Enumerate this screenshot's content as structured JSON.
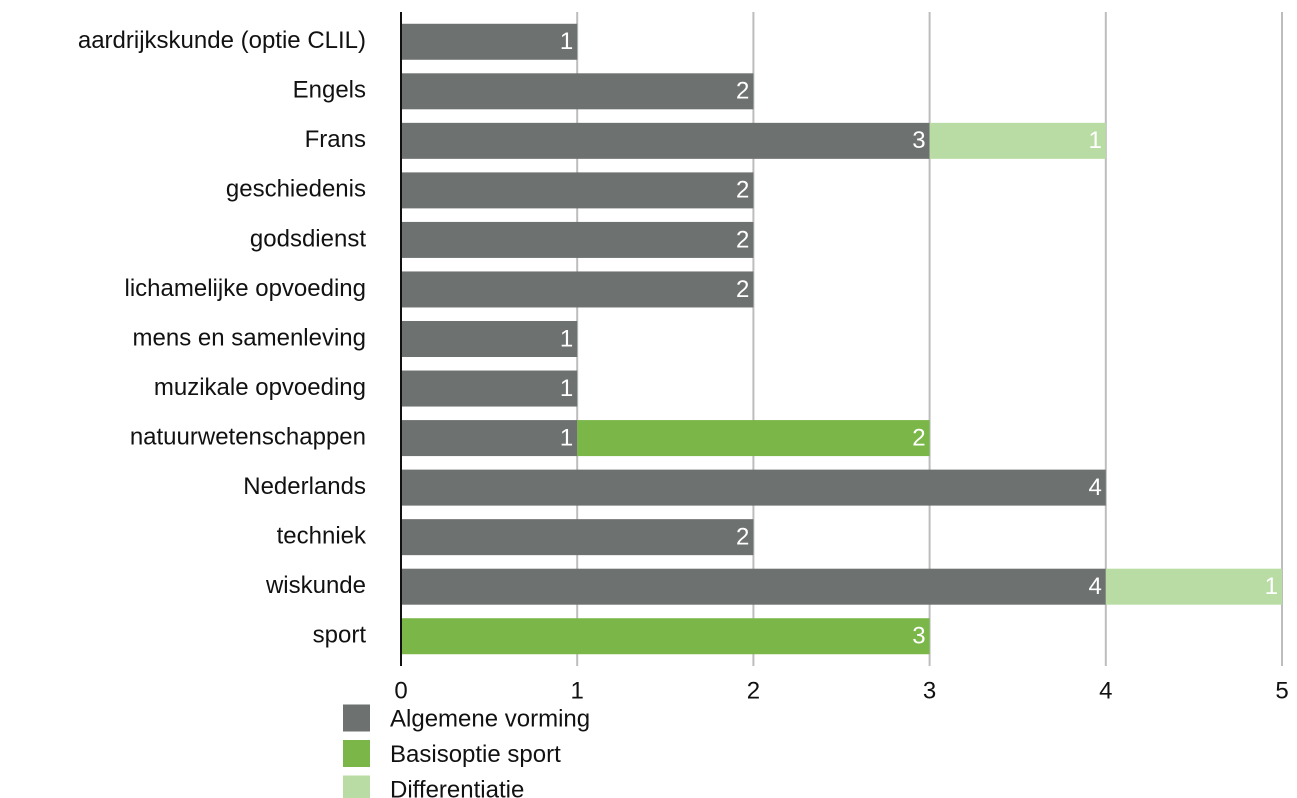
{
  "chart_data": {
    "type": "hbar-stacked",
    "categories": [
      "aardrijkskunde (optie CLIL)",
      "Engels",
      "Frans",
      "geschiedenis",
      "godsdienst",
      "lichamelijke opvoeding",
      "mens en samenleving",
      "muzikale opvoeding",
      "natuurwetenschappen",
      "Nederlands",
      "techniek",
      "wiskunde",
      "sport"
    ],
    "series": [
      {
        "name": "Algemene vorming",
        "color": "#6d716f",
        "values": [
          1,
          2,
          3,
          2,
          2,
          2,
          1,
          1,
          1,
          4,
          2,
          4,
          null
        ]
      },
      {
        "name": "Basisoptie sport",
        "color": "#7ab648",
        "values": [
          null,
          null,
          null,
          null,
          null,
          null,
          null,
          null,
          2,
          null,
          null,
          null,
          3
        ]
      },
      {
        "name": "Differentiatie",
        "color": "#b9dca5",
        "values": [
          null,
          null,
          1,
          null,
          null,
          null,
          null,
          null,
          null,
          null,
          null,
          1,
          null
        ]
      }
    ],
    "xlim": [
      0,
      5
    ],
    "xticks": [
      0,
      1,
      2,
      3,
      4,
      5
    ],
    "grid": true,
    "legend": "bottom"
  }
}
